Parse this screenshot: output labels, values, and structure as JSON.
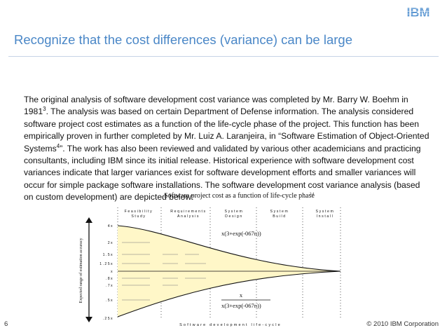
{
  "header": {
    "logo_text": "IBM",
    "title": "Recognize that the cost differences (variance) can be large"
  },
  "body": {
    "p1_a": "The original analysis of software development cost variance was completed by Mr. Barry W. Boehm in 1981",
    "p1_sup1": "3",
    "p1_b": ".  The analysis was based on certain Department of Defense information.  The analysis considered software project cost estimates as a function of the life-cycle phase of the project.  This function has been empirically proven in further completed by Mr. Luiz A. Laranjeira, in “Software Estimation of Object-Oriented Systems",
    "p1_sup2": "4",
    "p1_c": "”.  The work has also been reviewed and validated by various other academicians and practicing consultants, including IBM since its initial release.  Historical experience with software development cost variances indicate that larger variances exist for software development efforts and smaller variances will occur for simple package software installations. The software development cost variance analysis (based on custom development) are depicted below:"
  },
  "figure": {
    "title": "Software project cost as a function of life-cycle phase",
    "title_sup": "3,4",
    "phases": [
      "Feasibility Study",
      "Requirements Analysis",
      "System Design",
      "System Build",
      "System Install"
    ],
    "y_ticks": [
      "4x",
      "2x",
      "1.5x",
      "1.25x",
      "x",
      ".8x",
      ".7x",
      ".5x",
      ".25x"
    ],
    "y_axis_label": "Expected range of estimation accuracy",
    "x_axis_label": "Software development life-cycle",
    "upper_formula": "x(3+exp(-067n))",
    "lower_numerator": "x",
    "lower_formula": "x(3+exp(-067n))"
  },
  "footer": {
    "page_number": "6",
    "copyright": "© 2010 IBM Corporation"
  },
  "colors": {
    "title": "#4a87c7",
    "logo": "#1f70c1",
    "cone_fill": "#fff7c8"
  }
}
